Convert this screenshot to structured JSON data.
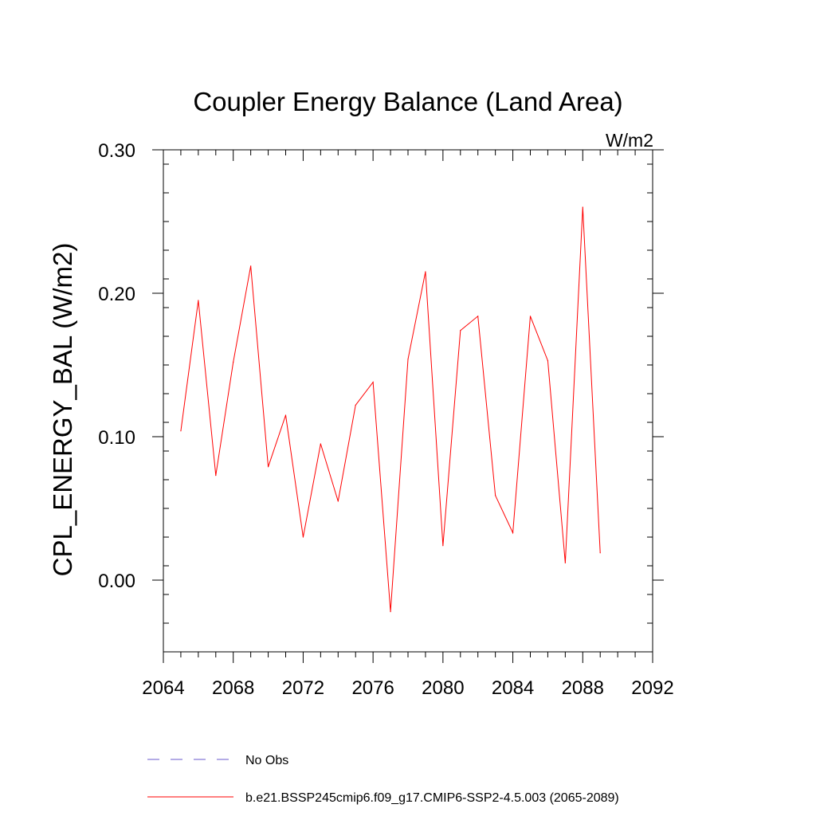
{
  "chart_data": {
    "type": "line",
    "title": "Coupler Energy Balance (Land Area)",
    "units": "W/m2",
    "xlabel": "",
    "ylabel": "CPL_ENERGY_BAL  (W/m2)",
    "xlim": [
      2064,
      2092
    ],
    "ylim": [
      -0.05,
      0.3
    ],
    "x_ticks": [
      2064,
      2068,
      2072,
      2076,
      2080,
      2084,
      2088,
      2092
    ],
    "x_tick_labels": [
      "2064",
      "2068",
      "2072",
      "2076",
      "2080",
      "2084",
      "2088",
      "2092"
    ],
    "x_minor_step": 1,
    "y_ticks": [
      0.0,
      0.1,
      0.2,
      0.3
    ],
    "y_tick_labels": [
      "0.00",
      "0.10",
      "0.20",
      "0.30"
    ],
    "y_minor_step": 0.02,
    "grid": false,
    "legend_position": "bottom",
    "series": [
      {
        "name": "b.e21.BSSP245cmip6.f09_g17.CMIP6-SSP2-4.5.003 (2065-2089)",
        "color": "#ff0000",
        "dash": "solid",
        "x": [
          2065,
          2066,
          2067,
          2068,
          2069,
          2070,
          2071,
          2072,
          2073,
          2074,
          2075,
          2076,
          2077,
          2078,
          2079,
          2080,
          2081,
          2082,
          2083,
          2084,
          2085,
          2086,
          2087,
          2088,
          2089
        ],
        "values": [
          0.104,
          0.195,
          0.073,
          0.152,
          0.219,
          0.079,
          0.115,
          0.03,
          0.095,
          0.055,
          0.122,
          0.138,
          -0.022,
          0.154,
          0.215,
          0.024,
          0.174,
          0.184,
          0.059,
          0.033,
          0.184,
          0.153,
          0.012,
          0.26,
          0.019
        ]
      }
    ],
    "legend": [
      {
        "label": "No Obs",
        "color": "#6a5acd",
        "dash": "dashed"
      },
      {
        "label": "b.e21.BSSP245cmip6.f09_g17.CMIP6-SSP2-4.5.003 (2065-2089)",
        "color": "#ff0000",
        "dash": "solid"
      }
    ]
  }
}
